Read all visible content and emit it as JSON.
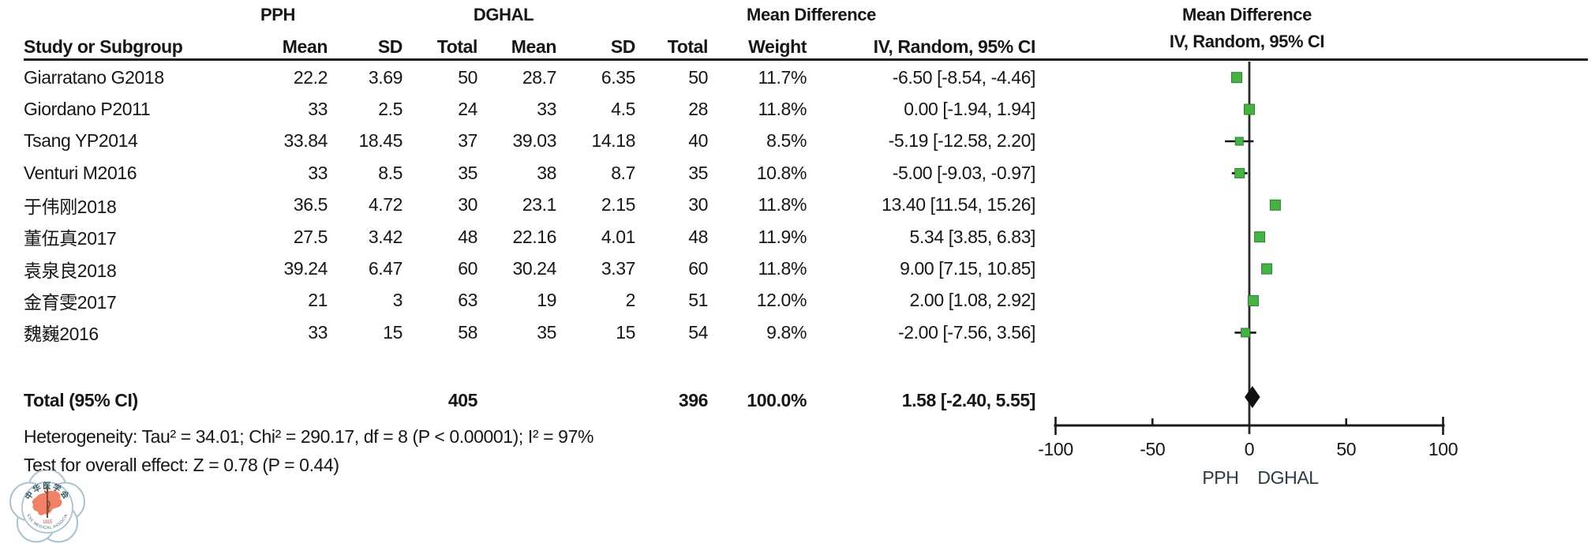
{
  "table": {
    "group_headers": {
      "pph": "PPH",
      "dghal": "DGHAL",
      "md_line1": "Mean Difference"
    },
    "columns": [
      "Study or Subgroup",
      "Mean",
      "SD",
      "Total",
      "Mean",
      "SD",
      "Total",
      "Weight",
      "IV, Random, 95% CI"
    ],
    "rows": [
      {
        "study": "Giarratano G2018",
        "pph_mean": "22.2",
        "pph_sd": "3.69",
        "pph_total": "50",
        "dghal_mean": "28.7",
        "dghal_sd": "6.35",
        "dghal_total": "50",
        "weight": "11.7%",
        "ci": "-6.50 [-8.54, -4.46]"
      },
      {
        "study": "Giordano P2011",
        "pph_mean": "33",
        "pph_sd": "2.5",
        "pph_total": "24",
        "dghal_mean": "33",
        "dghal_sd": "4.5",
        "dghal_total": "28",
        "weight": "11.8%",
        "ci": "0.00 [-1.94, 1.94]"
      },
      {
        "study": "Tsang YP2014",
        "pph_mean": "33.84",
        "pph_sd": "18.45",
        "pph_total": "37",
        "dghal_mean": "39.03",
        "dghal_sd": "14.18",
        "dghal_total": "40",
        "weight": "8.5%",
        "ci": "-5.19 [-12.58, 2.20]"
      },
      {
        "study": "Venturi M2016",
        "pph_mean": "33",
        "pph_sd": "8.5",
        "pph_total": "35",
        "dghal_mean": "38",
        "dghal_sd": "8.7",
        "dghal_total": "35",
        "weight": "10.8%",
        "ci": "-5.00 [-9.03, -0.97]"
      },
      {
        "study": "于伟刚2018",
        "pph_mean": "36.5",
        "pph_sd": "4.72",
        "pph_total": "30",
        "dghal_mean": "23.1",
        "dghal_sd": "2.15",
        "dghal_total": "30",
        "weight": "11.8%",
        "ci": "13.40 [11.54, 15.26]"
      },
      {
        "study": "董伍真2017",
        "pph_mean": "27.5",
        "pph_sd": "3.42",
        "pph_total": "48",
        "dghal_mean": "22.16",
        "dghal_sd": "4.01",
        "dghal_total": "48",
        "weight": "11.9%",
        "ci": "5.34 [3.85, 6.83]"
      },
      {
        "study": "袁泉良2018",
        "pph_mean": "39.24",
        "pph_sd": "6.47",
        "pph_total": "60",
        "dghal_mean": "30.24",
        "dghal_sd": "3.37",
        "dghal_total": "60",
        "weight": "11.8%",
        "ci": "9.00 [7.15, 10.85]"
      },
      {
        "study": "金育雯2017",
        "pph_mean": "21",
        "pph_sd": "3",
        "pph_total": "63",
        "dghal_mean": "19",
        "dghal_sd": "2",
        "dghal_total": "51",
        "weight": "12.0%",
        "ci": "2.00 [1.08, 2.92]"
      },
      {
        "study": "魏巍2016",
        "pph_mean": "33",
        "pph_sd": "15",
        "pph_total": "58",
        "dghal_mean": "35",
        "dghal_sd": "15",
        "dghal_total": "54",
        "weight": "9.8%",
        "ci": "-2.00 [-7.56, 3.56]"
      }
    ],
    "total_row": {
      "label": "Total (95% CI)",
      "pph_total": "405",
      "dghal_total": "396",
      "weight": "100.0%",
      "ci": "1.58 [-2.40, 5.55]"
    },
    "heterogeneity": "Heterogeneity: Tau² = 34.01; Chi² = 290.17, df = 8 (P < 0.00001); I² = 97%",
    "overall_effect": "Test for overall effect: Z = 0.78 (P = 0.44)"
  },
  "plot": {
    "header_line1": "Mean Difference",
    "header_line2": "IV, Random, 95% CI",
    "axis_labels": [
      "-100",
      "-50",
      "0",
      "50",
      "100"
    ],
    "favours_left": "PPH",
    "favours_right": "DGHAL",
    "marker_color": "#44b244",
    "marker_border_color": "#2f7d32",
    "line_color": "#1a1a1a"
  },
  "chart_data": {
    "type": "forest",
    "title": "Mean Difference",
    "effect_measure": "IV, Random, 95% CI",
    "xlim": [
      -100,
      100
    ],
    "axis_ticks": [
      -100,
      -50,
      0,
      50,
      100
    ],
    "studies": [
      {
        "name": "Giarratano G2018",
        "md": -6.5,
        "lo": -8.54,
        "hi": -4.46,
        "weight_pct": 11.7
      },
      {
        "name": "Giordano P2011",
        "md": 0.0,
        "lo": -1.94,
        "hi": 1.94,
        "weight_pct": 11.8
      },
      {
        "name": "Tsang YP2014",
        "md": -5.19,
        "lo": -12.58,
        "hi": 2.2,
        "weight_pct": 8.5
      },
      {
        "name": "Venturi M2016",
        "md": -5.0,
        "lo": -9.03,
        "hi": -0.97,
        "weight_pct": 10.8
      },
      {
        "name": "于伟刚2018",
        "md": 13.4,
        "lo": 11.54,
        "hi": 15.26,
        "weight_pct": 11.8
      },
      {
        "name": "董伍真2017",
        "md": 5.34,
        "lo": 3.85,
        "hi": 6.83,
        "weight_pct": 11.9
      },
      {
        "name": "袁泉良2018",
        "md": 9.0,
        "lo": 7.15,
        "hi": 10.85,
        "weight_pct": 11.8
      },
      {
        "name": "金育雯2017",
        "md": 2.0,
        "lo": 1.08,
        "hi": 2.92,
        "weight_pct": 12.0
      },
      {
        "name": "魏巍2016",
        "md": -2.0,
        "lo": -7.56,
        "hi": 3.56,
        "weight_pct": 9.8
      }
    ],
    "total": {
      "md": 1.58,
      "lo": -2.4,
      "hi": 5.55
    }
  },
  "logo": {
    "chinese_name": "中华医学会",
    "english_name": "CHINESE MEDICAL ASSOCIATION",
    "year": "1915"
  }
}
